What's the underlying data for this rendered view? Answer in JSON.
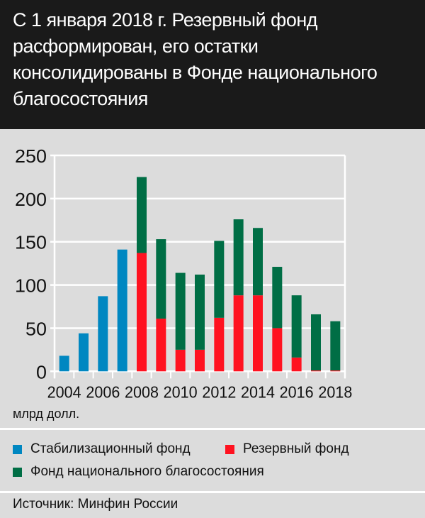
{
  "title": "С 1 января 2018 г. Резервный фонд расформирован, его остатки консолидированы в Фонде национального благосостояния",
  "unit_label": "млрд долл.",
  "source": "Источник: Минфин России",
  "chart_data": {
    "type": "bar",
    "stacked": true,
    "title": "С 1 января 2018 г. Резервный фонд расформирован, его остатки консолидированы в Фонде национального благосостояния",
    "ylabel": "млрд долл.",
    "ylim": [
      0,
      250
    ],
    "yticks": [
      0,
      50,
      100,
      150,
      200,
      250
    ],
    "categories": [
      "2004",
      "2005",
      "2006",
      "2007",
      "2008",
      "2009",
      "2010",
      "2011",
      "2012",
      "2013",
      "2014",
      "2015",
      "2016",
      "2017",
      "2018"
    ],
    "xtick_labels": [
      "2004",
      "2006",
      "2008",
      "2010",
      "2012",
      "2014",
      "2016",
      "2018"
    ],
    "grid": true,
    "legend_position": "bottom",
    "series": [
      {
        "name": "Стабилизационный фонд",
        "color": "#0087c1",
        "values": [
          18,
          44,
          87,
          141,
          0,
          0,
          0,
          0,
          0,
          0,
          0,
          0,
          0,
          0,
          0
        ]
      },
      {
        "name": "Резервный фонд",
        "color": "#ff1220",
        "values": [
          0,
          0,
          0,
          0,
          137,
          61,
          25,
          25,
          62,
          88,
          88,
          50,
          16,
          1,
          1
        ]
      },
      {
        "name": "Фонд национального благосостояния",
        "color": "#006e45",
        "values": [
          0,
          0,
          0,
          0,
          88,
          92,
          89,
          87,
          89,
          88,
          78,
          71,
          72,
          65,
          57
        ]
      }
    ]
  }
}
